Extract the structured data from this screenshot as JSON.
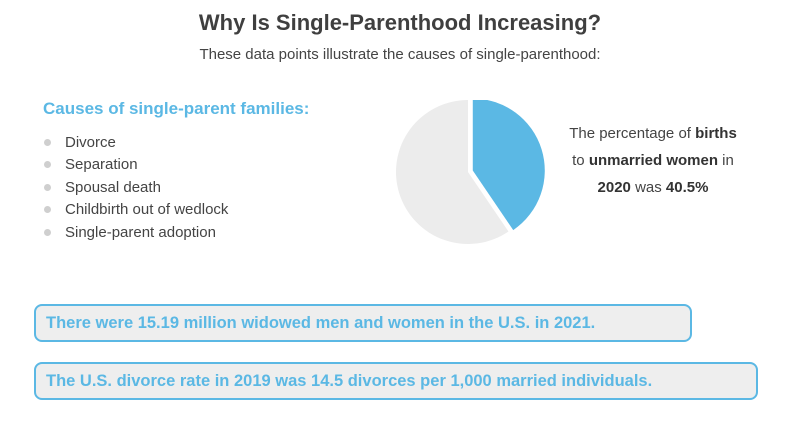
{
  "header": {
    "title": "Why Is Single-Parenthood Increasing?",
    "subtitle": "These data points illustrate the causes of single-parenthood:"
  },
  "causes": {
    "heading": "Causes of single-parent families:",
    "items": [
      "Divorce",
      "Separation",
      "Spousal death",
      "Childbirth out of wedlock",
      "Single-parent adoption"
    ]
  },
  "pie_caption": {
    "p1": "The percentage of ",
    "b1": "births",
    "p2": "to ",
    "b2": "unmarried women",
    "p3": " in",
    "b3": "2020",
    "p4": " was ",
    "b4": "40.5%"
  },
  "callouts": {
    "widowed": "There were 15.19 million widowed men and women in the U.S. in 2021.",
    "divorce": "The U.S. divorce rate in 2019 was 14.5 divorces per 1,000 married individuals."
  },
  "colors": {
    "accent": "#5bb8e4",
    "pie_rest": "#ececec",
    "callout_bg": "#eeeeee"
  },
  "chart_data": {
    "type": "pie",
    "slices": [
      {
        "value": 40.5,
        "color": "#5bb8e4",
        "exploded": true
      },
      {
        "value": 59.5,
        "color": "#ececec",
        "exploded": false
      }
    ]
  }
}
